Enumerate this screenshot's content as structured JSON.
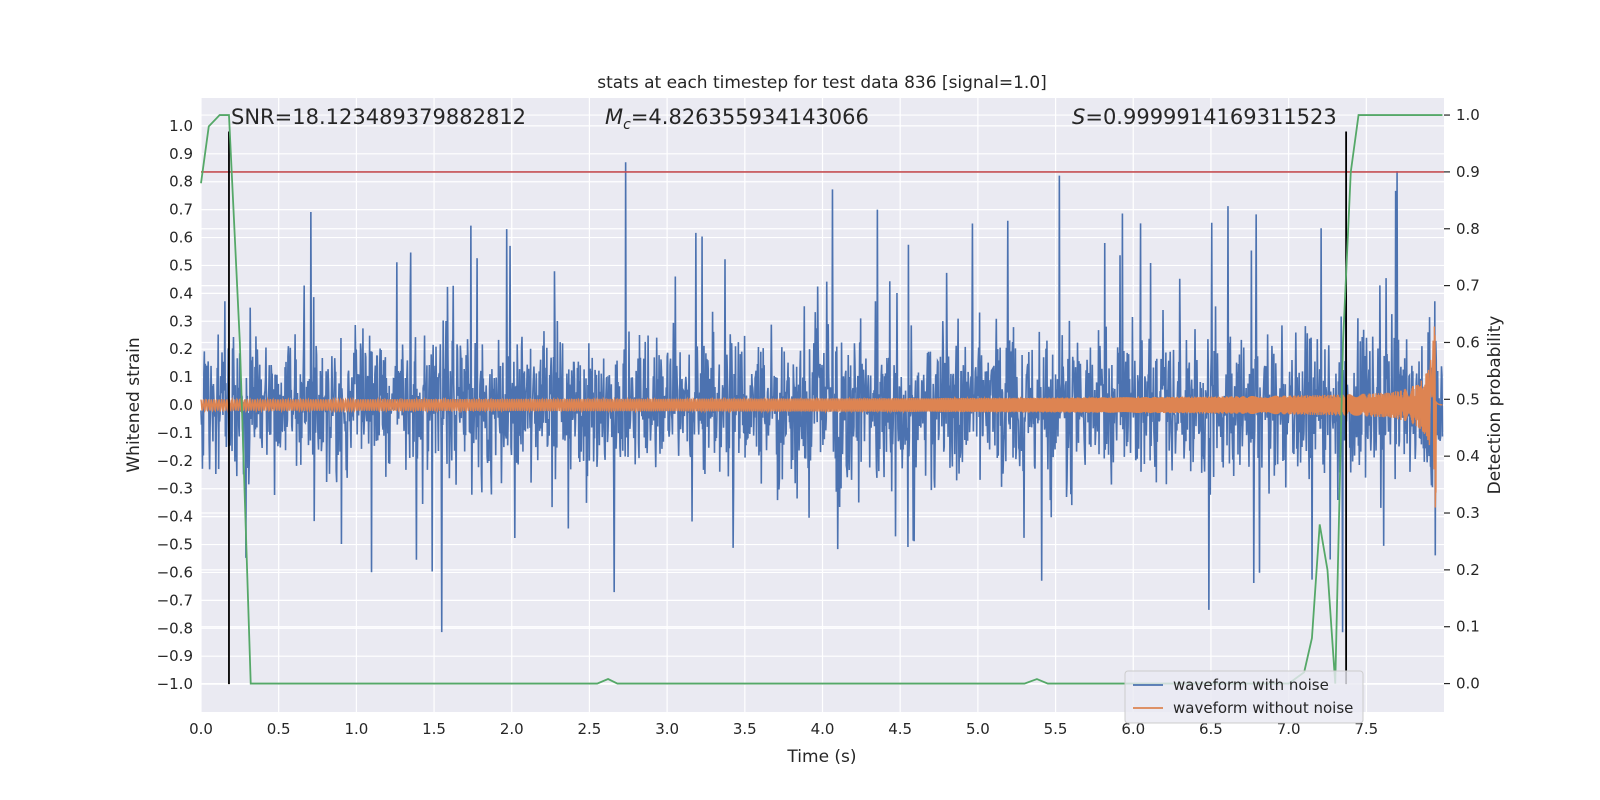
{
  "chart_data": {
    "type": "line",
    "title": "stats at each timestep for test data 836 [signal=1.0]",
    "xlabel": "Time (s)",
    "ylabel": "Whitened strain",
    "y2label": "Detection probability",
    "xlim": [
      0.0,
      8.0
    ],
    "ylim": [
      -1.1,
      1.1
    ],
    "y2lim": [
      -0.05,
      1.03
    ],
    "x_ticks": [
      "0.0",
      "0.5",
      "1.0",
      "1.5",
      "2.0",
      "2.5",
      "3.0",
      "3.5",
      "4.0",
      "4.5",
      "5.0",
      "5.5",
      "6.0",
      "6.5",
      "7.0",
      "7.5"
    ],
    "x_tick_values": [
      0.0,
      0.5,
      1.0,
      1.5,
      2.0,
      2.5,
      3.0,
      3.5,
      4.0,
      4.5,
      5.0,
      5.5,
      6.0,
      6.5,
      7.0,
      7.5
    ],
    "y_ticks": [
      "1.0",
      "0.9",
      "0.8",
      "0.7",
      "0.6",
      "0.5",
      "0.4",
      "0.3",
      "0.2",
      "0.1",
      "0.0",
      "−0.1",
      "−0.2",
      "−0.3",
      "−0.4",
      "−0.5",
      "−0.6",
      "−0.7",
      "−0.8",
      "−0.9",
      "−1.0"
    ],
    "y_tick_values": [
      1.0,
      0.9,
      0.8,
      0.7,
      0.6,
      0.5,
      0.4,
      0.3,
      0.2,
      0.1,
      0.0,
      -0.1,
      -0.2,
      -0.3,
      -0.4,
      -0.5,
      -0.6,
      -0.7,
      -0.8,
      -0.9,
      -1.0
    ],
    "y2_ticks": [
      "1.0",
      "0.9",
      "0.8",
      "0.7",
      "0.6",
      "0.5",
      "0.4",
      "0.3",
      "0.2",
      "0.1",
      "0.0"
    ],
    "y2_tick_values": [
      1.0,
      0.9,
      0.8,
      0.7,
      0.6,
      0.5,
      0.4,
      0.3,
      0.2,
      0.1,
      0.0
    ],
    "annotations": {
      "snr": "SNR=18.123489379882812",
      "mc_symbol": "M",
      "mc_subscript": "c",
      "mc_value": "=4.826355934143066",
      "s_symbol": "S",
      "s_value": "=0.9999914169311523"
    },
    "threshold": 0.9,
    "vertical_markers": [
      0.18,
      7.37
    ],
    "legend": {
      "position": "lower-right",
      "entries": [
        "waveform with noise",
        "waveform without noise"
      ]
    },
    "series": [
      {
        "name": "waveform with noise",
        "color": "#4c72b0",
        "axis": "left",
        "x_range": [
          0.0,
          7.99
        ],
        "amplitude_envelope": [
          0.45,
          0.6
        ],
        "clip": [
          -1.0,
          0.95
        ]
      },
      {
        "name": "waveform without noise",
        "color": "#dd8452",
        "axis": "left",
        "x_range": [
          0.0,
          7.99
        ],
        "amplitude_start": 0.02,
        "amplitude_peak": 0.38,
        "peak_x": 7.9
      },
      {
        "name": "detection probability",
        "color": "#55a868",
        "axis": "right",
        "x": [
          0.0,
          0.05,
          0.12,
          0.18,
          0.25,
          0.32,
          0.38,
          0.5,
          1.0,
          1.5,
          2.0,
          2.5,
          2.55,
          2.62,
          2.68,
          3.0,
          4.0,
          5.0,
          5.3,
          5.38,
          5.45,
          6.0,
          6.5,
          7.0,
          7.1,
          7.15,
          7.2,
          7.25,
          7.3,
          7.35,
          7.4,
          7.45,
          7.5,
          7.99
        ],
        "y": [
          0.88,
          0.98,
          1.0,
          1.0,
          0.6,
          0.0,
          0.0,
          0.0,
          0.0,
          0.0,
          0.0,
          0.0,
          0.0,
          0.008,
          0.0,
          0.0,
          0.0,
          0.0,
          0.0,
          0.008,
          0.0,
          0.0,
          0.0,
          0.0,
          0.02,
          0.08,
          0.28,
          0.2,
          0.0,
          0.6,
          0.9,
          1.0,
          1.0,
          1.0
        ]
      }
    ],
    "colors": {
      "plot_bg": "#eaeaf2",
      "grid": "#ffffff",
      "noise": "#4c72b0",
      "clean": "#dd8452",
      "prob": "#55a868",
      "threshold": "#c44e52",
      "marker": "#000000"
    }
  }
}
